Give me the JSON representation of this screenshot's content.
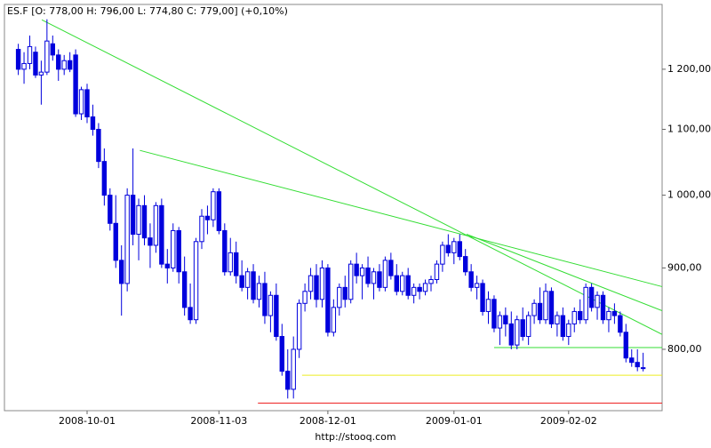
{
  "chart_data": {
    "type": "candlestick",
    "title": "ES.F [O: 778,00  H: 796,00  L: 774,80  C: 779,00] (+0,10%)",
    "footer": "http://stooq.com",
    "log_scale": true,
    "ylim": [
      732,
      1318
    ],
    "yticks": [
      {
        "value": 800,
        "label": "800,00"
      },
      {
        "value": 900,
        "label": "900,00"
      },
      {
        "value": 1000,
        "label": "1 000,00"
      },
      {
        "value": 1100,
        "label": "1 100,00"
      },
      {
        "value": 1200,
        "label": "1 200,00"
      }
    ],
    "up_color": "#ffffff",
    "down_color": "#0000dd",
    "edge_color": "#0000dd",
    "categories": [
      null,
      null,
      null,
      null,
      null,
      null,
      null,
      null,
      null,
      null,
      null,
      null,
      "2008-10-01",
      null,
      null,
      null,
      null,
      null,
      null,
      null,
      null,
      null,
      null,
      null,
      null,
      null,
      null,
      null,
      null,
      null,
      null,
      null,
      null,
      null,
      null,
      "2008-11-03",
      null,
      null,
      null,
      null,
      null,
      null,
      null,
      null,
      null,
      null,
      null,
      null,
      null,
      null,
      null,
      null,
      null,
      null,
      "2008-12-01",
      null,
      null,
      null,
      null,
      null,
      null,
      null,
      null,
      null,
      null,
      null,
      null,
      null,
      null,
      null,
      null,
      null,
      null,
      null,
      null,
      null,
      "2009-01-01",
      null,
      null,
      null,
      null,
      null,
      null,
      null,
      null,
      null,
      null,
      null,
      null,
      null,
      null,
      null,
      null,
      null,
      null,
      null,
      "2009-02-02",
      null,
      null,
      null,
      null,
      null,
      null,
      null,
      null,
      null,
      null,
      null,
      null,
      null
    ],
    "ohlc": [
      [
        1235,
        1245,
        1190,
        1200
      ],
      [
        1200,
        1230,
        1175,
        1210
      ],
      [
        1210,
        1260,
        1200,
        1240
      ],
      [
        1230,
        1240,
        1185,
        1190
      ],
      [
        1190,
        1215,
        1140,
        1195
      ],
      [
        1195,
        1290,
        1190,
        1250
      ],
      [
        1245,
        1260,
        1215,
        1225
      ],
      [
        1225,
        1235,
        1180,
        1200
      ],
      [
        1200,
        1225,
        1190,
        1215
      ],
      [
        1215,
        1230,
        1195,
        1200
      ],
      [
        1225,
        1235,
        1120,
        1125
      ],
      [
        1125,
        1170,
        1115,
        1165
      ],
      [
        1165,
        1175,
        1110,
        1120
      ],
      [
        1120,
        1140,
        1090,
        1100
      ],
      [
        1100,
        1110,
        1040,
        1050
      ],
      [
        1050,
        1070,
        985,
        1000
      ],
      [
        1000,
        1010,
        950,
        960
      ],
      [
        960,
        1000,
        900,
        910
      ],
      [
        910,
        930,
        840,
        880
      ],
      [
        880,
        1010,
        870,
        1000
      ],
      [
        1000,
        1070,
        930,
        945
      ],
      [
        945,
        995,
        910,
        985
      ],
      [
        985,
        1000,
        930,
        940
      ],
      [
        940,
        960,
        900,
        930
      ],
      [
        930,
        990,
        920,
        985
      ],
      [
        985,
        995,
        900,
        905
      ],
      [
        905,
        925,
        880,
        900
      ],
      [
        900,
        960,
        895,
        950
      ],
      [
        950,
        955,
        880,
        895
      ],
      [
        895,
        915,
        840,
        850
      ],
      [
        850,
        880,
        830,
        835
      ],
      [
        835,
        940,
        830,
        935
      ],
      [
        935,
        980,
        925,
        970
      ],
      [
        970,
        985,
        945,
        965
      ],
      [
        965,
        1010,
        955,
        1005
      ],
      [
        1005,
        1010,
        945,
        950
      ],
      [
        950,
        960,
        890,
        895
      ],
      [
        895,
        940,
        890,
        920
      ],
      [
        920,
        935,
        880,
        890
      ],
      [
        890,
        910,
        870,
        875
      ],
      [
        875,
        900,
        860,
        895
      ],
      [
        895,
        905,
        855,
        860
      ],
      [
        860,
        890,
        850,
        880
      ],
      [
        880,
        895,
        830,
        840
      ],
      [
        840,
        870,
        820,
        865
      ],
      [
        865,
        880,
        810,
        815
      ],
      [
        815,
        830,
        770,
        775
      ],
      [
        775,
        800,
        745,
        755
      ],
      [
        755,
        815,
        745,
        800
      ],
      [
        800,
        860,
        790,
        855
      ],
      [
        855,
        880,
        845,
        870
      ],
      [
        870,
        900,
        860,
        890
      ],
      [
        890,
        905,
        850,
        860
      ],
      [
        860,
        910,
        850,
        900
      ],
      [
        900,
        905,
        815,
        820
      ],
      [
        820,
        860,
        815,
        850
      ],
      [
        850,
        880,
        840,
        875
      ],
      [
        875,
        890,
        850,
        860
      ],
      [
        860,
        910,
        855,
        905
      ],
      [
        905,
        920,
        880,
        890
      ],
      [
        890,
        905,
        860,
        900
      ],
      [
        900,
        915,
        875,
        880
      ],
      [
        880,
        900,
        860,
        895
      ],
      [
        895,
        905,
        870,
        875
      ],
      [
        875,
        915,
        870,
        910
      ],
      [
        910,
        920,
        885,
        890
      ],
      [
        890,
        905,
        865,
        870
      ],
      [
        870,
        895,
        865,
        890
      ],
      [
        890,
        900,
        860,
        865
      ],
      [
        865,
        880,
        855,
        875
      ],
      [
        875,
        880,
        860,
        870
      ],
      [
        870,
        885,
        865,
        880
      ],
      [
        880,
        890,
        870,
        885
      ],
      [
        885,
        910,
        880,
        905
      ],
      [
        905,
        935,
        895,
        930
      ],
      [
        930,
        945,
        915,
        920
      ],
      [
        920,
        940,
        905,
        935
      ],
      [
        935,
        945,
        910,
        915
      ],
      [
        915,
        925,
        890,
        895
      ],
      [
        895,
        905,
        870,
        875
      ],
      [
        875,
        890,
        860,
        880
      ],
      [
        880,
        885,
        840,
        845
      ],
      [
        845,
        870,
        830,
        860
      ],
      [
        860,
        865,
        820,
        825
      ],
      [
        825,
        845,
        805,
        840
      ],
      [
        840,
        850,
        815,
        830
      ],
      [
        830,
        845,
        800,
        805
      ],
      [
        805,
        840,
        800,
        835
      ],
      [
        835,
        850,
        810,
        815
      ],
      [
        815,
        845,
        805,
        840
      ],
      [
        840,
        860,
        830,
        855
      ],
      [
        855,
        875,
        830,
        835
      ],
      [
        835,
        880,
        830,
        870
      ],
      [
        870,
        875,
        825,
        830
      ],
      [
        830,
        845,
        815,
        840
      ],
      [
        840,
        850,
        810,
        815
      ],
      [
        815,
        835,
        805,
        830
      ],
      [
        830,
        850,
        820,
        845
      ],
      [
        845,
        860,
        830,
        835
      ],
      [
        835,
        880,
        830,
        875
      ],
      [
        875,
        880,
        845,
        850
      ],
      [
        850,
        870,
        835,
        865
      ],
      [
        865,
        870,
        830,
        835
      ],
      [
        835,
        850,
        820,
        845
      ],
      [
        845,
        855,
        830,
        840
      ],
      [
        840,
        845,
        815,
        820
      ],
      [
        820,
        830,
        785,
        790
      ],
      [
        790,
        800,
        780,
        785
      ],
      [
        785,
        800,
        775,
        780
      ],
      [
        778,
        796,
        774.8,
        779
      ]
    ],
    "trendlines": [
      {
        "color": "#33dd33",
        "points": [
          [
            4.1,
            1289
          ],
          [
            112.3,
            817.5
          ]
        ]
      },
      {
        "color": "#33dd33",
        "points": [
          [
            21.2,
            1067
          ],
          [
            112.3,
            876
          ]
        ]
      },
      {
        "color": "#33dd33",
        "points": [
          [
            78.2,
            945
          ],
          [
            112.3,
            846
          ]
        ]
      }
    ],
    "hlines": [
      {
        "color": "#33dd33",
        "value": 802,
        "from": 83
      },
      {
        "color": "#eeee22",
        "value": 770.6,
        "from": 49.5
      },
      {
        "color": "#ee2222",
        "value": 740,
        "from": 41.8
      }
    ]
  }
}
